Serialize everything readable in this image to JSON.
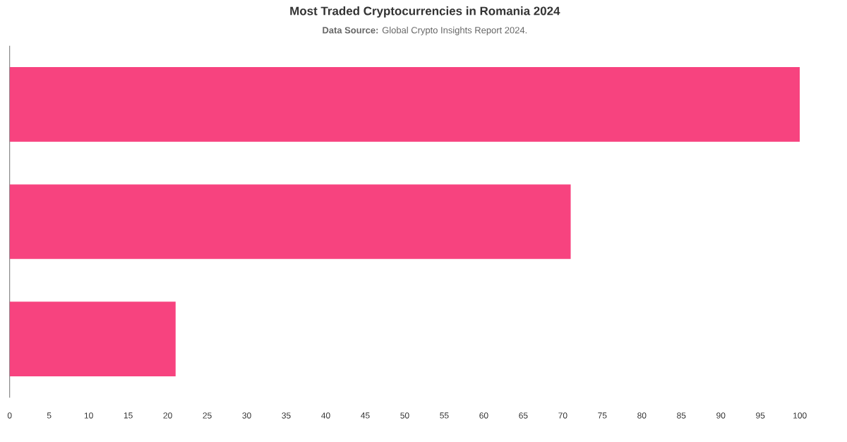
{
  "chart_data": {
    "type": "bar",
    "orientation": "horizontal",
    "title": "Most Traded Cryptocurrencies in Romania 2024",
    "annotations": [
      "**Data Source:** Global Crypto Insights Report 2024."
    ],
    "categories": [
      null,
      null,
      null
    ],
    "values": [
      100,
      71,
      21
    ],
    "color": "#f7437f",
    "xlim": [
      0,
      100
    ],
    "xticks": [
      0,
      5,
      10,
      15,
      20,
      25,
      30,
      35,
      40,
      45,
      50,
      55,
      60,
      65,
      70,
      75,
      80,
      85,
      90,
      95,
      100
    ],
    "tick_labels": "x",
    "grid": false
  }
}
